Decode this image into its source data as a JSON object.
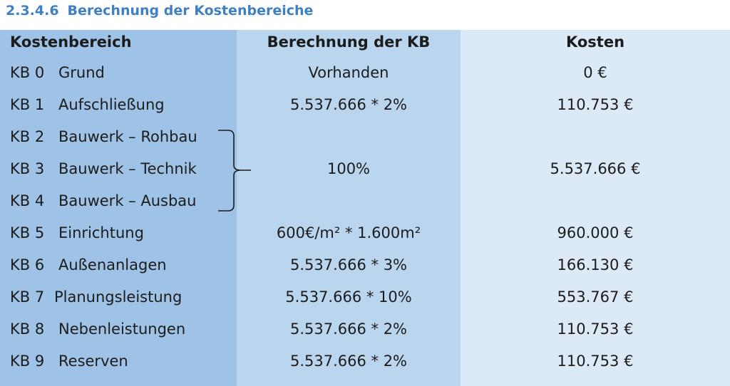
{
  "section": {
    "number": "2.3.4.6",
    "title": "Berechnung der Kostenbereiche"
  },
  "table": {
    "headers": {
      "kostenbereich": "Kostenbereich",
      "berechnung": "Berechnung der KB",
      "kosten": "Kosten"
    },
    "rows": [
      {
        "code": "KB 0",
        "name": "Grund",
        "calc": "Vorhanden",
        "cost": "0 €"
      },
      {
        "code": "KB 1",
        "name": "Aufschließung",
        "calc": "5.537.666 * 2%",
        "cost": "110.753 €"
      },
      {
        "code": "KB 2",
        "name": "Bauwerk – Rohbau",
        "calc": "",
        "cost": ""
      },
      {
        "code": "KB 3",
        "name": "Bauwerk – Technik",
        "calc": "100%",
        "cost": "5.537.666 €"
      },
      {
        "code": "KB 4",
        "name": "Bauwerk – Ausbau",
        "calc": "",
        "cost": ""
      },
      {
        "code": "KB 5",
        "name": "Einrichtung",
        "calc": "600€/m² * 1.600m²",
        "cost": "960.000 €"
      },
      {
        "code": "KB 6",
        "name": "Außenanlagen",
        "calc": "5.537.666 * 3%",
        "cost": "166.130 €"
      },
      {
        "code": "KB 7",
        "name": "Planungsleistung",
        "calc": "5.537.666 * 10%",
        "cost": "553.767 €"
      },
      {
        "code": "KB 8",
        "name": "Nebenleistungen",
        "calc": "5.537.666 * 2%",
        "cost": "110.753 €"
      },
      {
        "code": "KB 9",
        "name": "Reserven",
        "calc": "5.537.666 * 2%",
        "cost": "110.753 €"
      }
    ]
  }
}
